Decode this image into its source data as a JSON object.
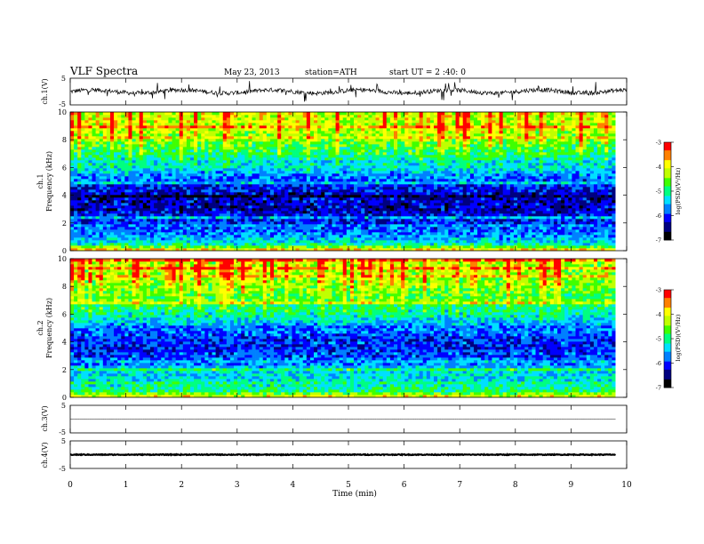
{
  "header": {
    "title": "VLF  Spectra",
    "date": "May 23, 2013",
    "station": "station=ATH",
    "start": "start  UT  =   2 :40: 0"
  },
  "colors": {
    "colormap": [
      "#000000",
      "#000080",
      "#0000ff",
      "#0080ff",
      "#00e0ff",
      "#00ff80",
      "#40ff00",
      "#c0ff00",
      "#ffff00",
      "#ff8000",
      "#ff0000",
      "#ffffff"
    ]
  },
  "chart_data": [
    {
      "type": "line",
      "panel": "ch1-waveform",
      "ylabel": "ch.1(V)",
      "yticks": [
        "5",
        "-5"
      ],
      "ylim": [
        -5,
        5
      ],
      "xlim": [
        0,
        10
      ],
      "baseline_v": 0,
      "noise": "high"
    },
    {
      "type": "heatmap",
      "panel": "ch1-spectrogram",
      "ylabel_top": "ch.1",
      "ylabel": "Frequency  (kHz)",
      "yticks": [
        "0",
        "2",
        "4",
        "6",
        "8",
        "10"
      ],
      "ylim": [
        0,
        10
      ],
      "xlim": [
        0,
        9.8
      ],
      "colorbar": {
        "label": "log(PSD)(V²/Hz)",
        "ticks": [
          "-3",
          "-4",
          "-5",
          "-6",
          "-7"
        ],
        "range": [
          -7,
          -3
        ]
      },
      "profile_khz": [
        0,
        0.5,
        1,
        2,
        3,
        4,
        5,
        6,
        7,
        8,
        9,
        10
      ],
      "profile_logpsd": [
        -3.6,
        -5.2,
        -5.6,
        -6.0,
        -6.3,
        -6.3,
        -5.9,
        -5.3,
        -4.9,
        -4.4,
        -4.1,
        -4.0
      ]
    },
    {
      "type": "heatmap",
      "panel": "ch2-spectrogram",
      "ylabel_top": "ch.2",
      "ylabel": "Frequency  (kHz)",
      "yticks": [
        "0",
        "2",
        "4",
        "6",
        "8",
        "10"
      ],
      "ylim": [
        0,
        10
      ],
      "xlim": [
        0,
        9.8
      ],
      "colorbar": {
        "label": "log(PSD)(V²/Hz)",
        "ticks": [
          "-3",
          "-4",
          "-5",
          "-6",
          "-7"
        ],
        "range": [
          -7,
          -3
        ]
      },
      "profile_khz": [
        0,
        0.5,
        1,
        2,
        3,
        4,
        5,
        6,
        7,
        8,
        9,
        10
      ],
      "profile_logpsd": [
        -3.9,
        -5.0,
        -5.2,
        -5.4,
        -5.9,
        -6.1,
        -5.7,
        -5.1,
        -4.8,
        -4.4,
        -4.2,
        -4.1
      ]
    },
    {
      "type": "line",
      "panel": "ch3-waveform",
      "ylabel": "ch.3(V)",
      "yticks": [
        "5",
        "-5"
      ],
      "ylim": [
        -5,
        5
      ],
      "xlim": [
        0,
        9.8
      ],
      "baseline_v": 0,
      "noise": "low"
    },
    {
      "type": "line",
      "panel": "ch4-waveform",
      "ylabel": "ch.4(V)",
      "yticks": [
        "5",
        "-5"
      ],
      "ylim": [
        -5,
        5
      ],
      "xlim": [
        0,
        9.8
      ],
      "baseline_v": 0,
      "noise": "thick"
    }
  ],
  "xaxis": {
    "label": "Time  (min)",
    "ticks": [
      "0",
      "1",
      "2",
      "3",
      "4",
      "5",
      "6",
      "7",
      "8",
      "9",
      "10"
    ],
    "range": [
      0,
      10
    ]
  }
}
